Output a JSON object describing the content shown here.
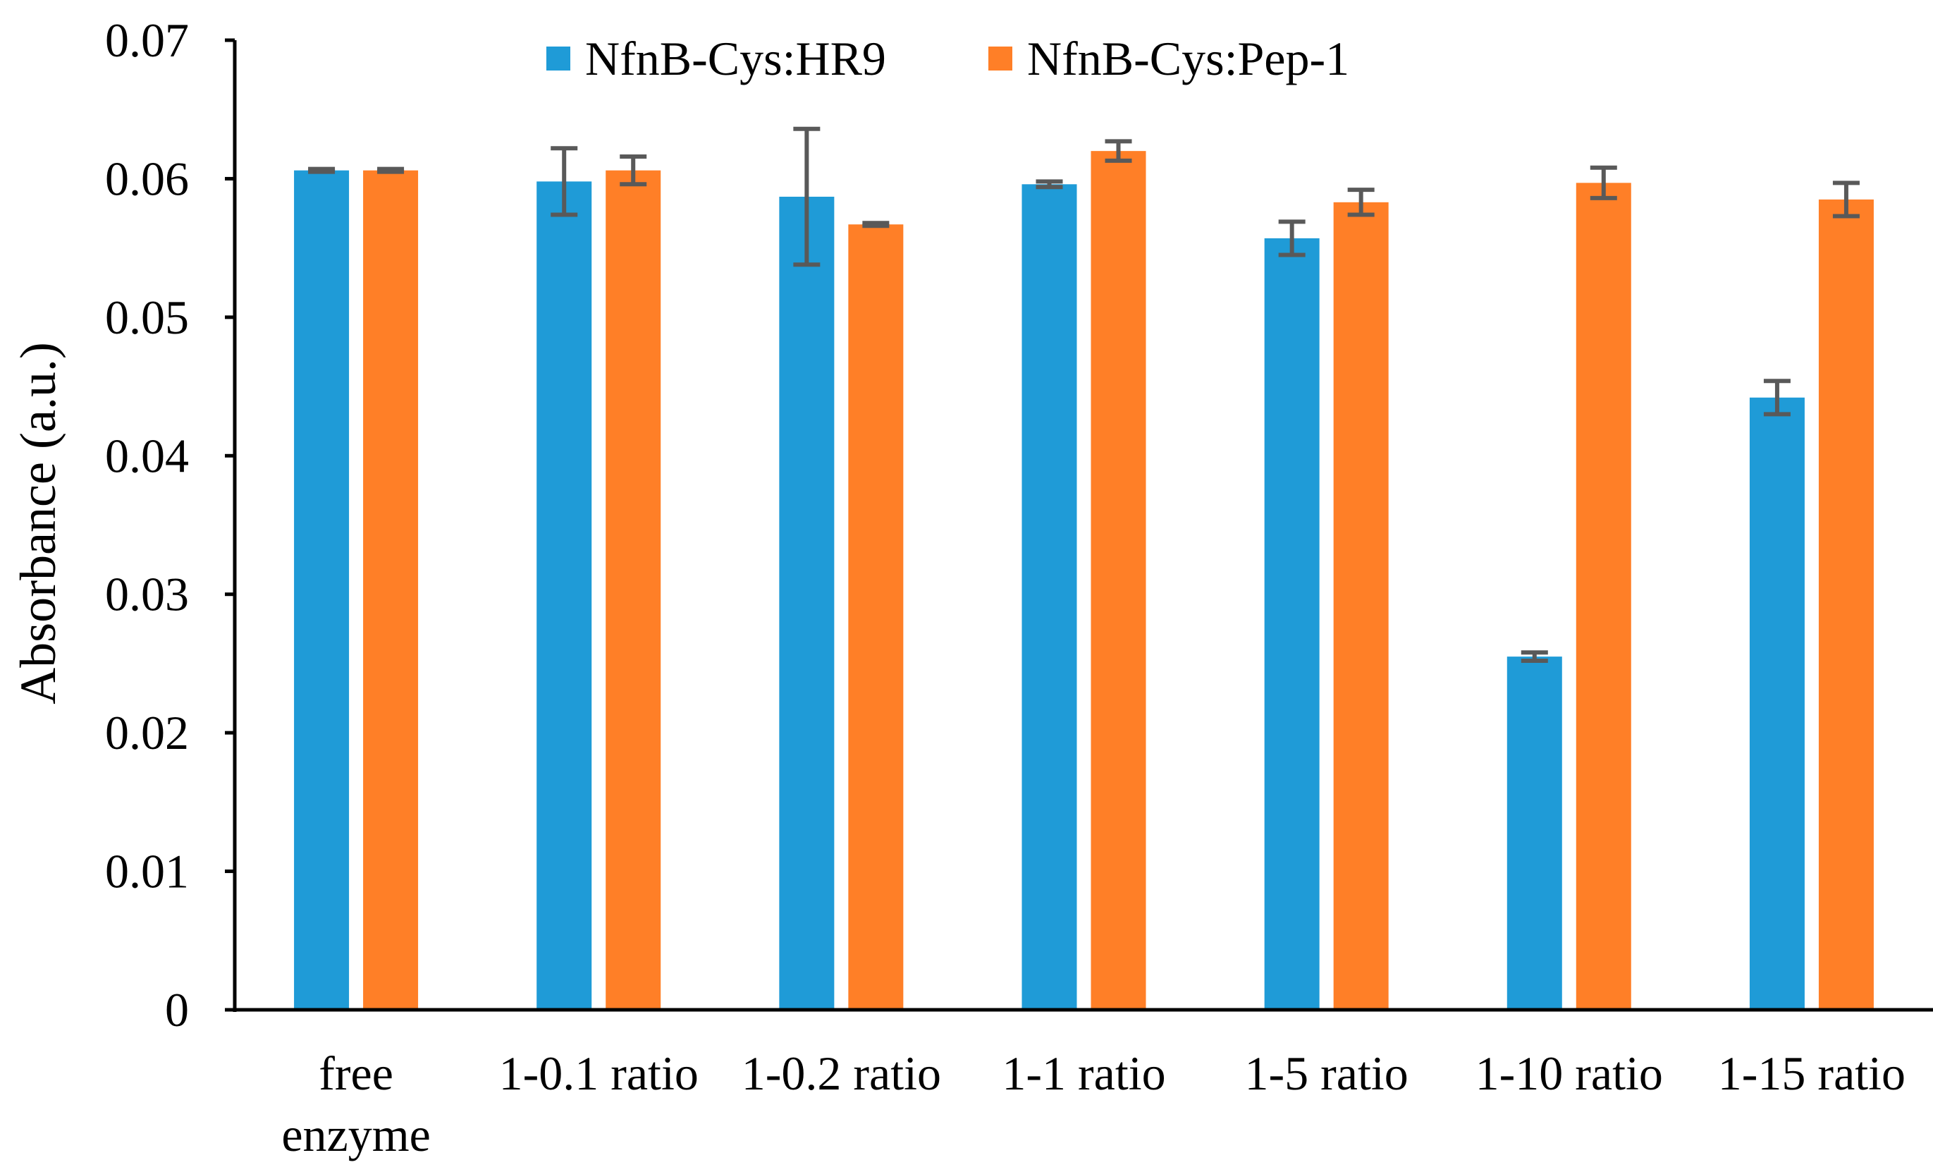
{
  "chart_data": {
    "type": "bar",
    "title": "",
    "xlabel": "",
    "ylabel": "Absorbance (a.u.)",
    "ylim": [
      0,
      0.07
    ],
    "yticks": [
      "0",
      "0.01",
      "0.02",
      "0.03",
      "0.04",
      "0.05",
      "0.06",
      "0.07"
    ],
    "ytick_values": [
      0,
      0.01,
      0.02,
      0.03,
      0.04,
      0.05,
      0.06,
      0.07
    ],
    "grid": false,
    "legend_position": "top-center",
    "categories": [
      [
        "free",
        "enzyme"
      ],
      [
        "1-0.1 ratio"
      ],
      [
        "1-0.2 ratio"
      ],
      [
        "1-1 ratio"
      ],
      [
        "1-5 ratio"
      ],
      [
        "1-10 ratio"
      ],
      [
        "1-15 ratio"
      ]
    ],
    "series": [
      {
        "name": "NfnB-Cys:HR9",
        "color": "#1F9BD7",
        "values": [
          0.0606,
          0.0598,
          0.0587,
          0.0596,
          0.0557,
          0.0255,
          0.0442
        ],
        "errors": [
          0.0001,
          0.0024,
          0.0049,
          0.0002,
          0.0012,
          0.0003,
          0.0012
        ]
      },
      {
        "name": "NfnB-Cys:Pep-1",
        "color": "#FF7F27",
        "values": [
          0.0606,
          0.0606,
          0.0567,
          0.062,
          0.0583,
          0.0597,
          0.0585
        ],
        "errors": [
          0.0001,
          0.001,
          0.0001,
          0.0007,
          0.0009,
          0.0011,
          0.0012
        ]
      }
    ],
    "error_bar_color": "#595959"
  }
}
